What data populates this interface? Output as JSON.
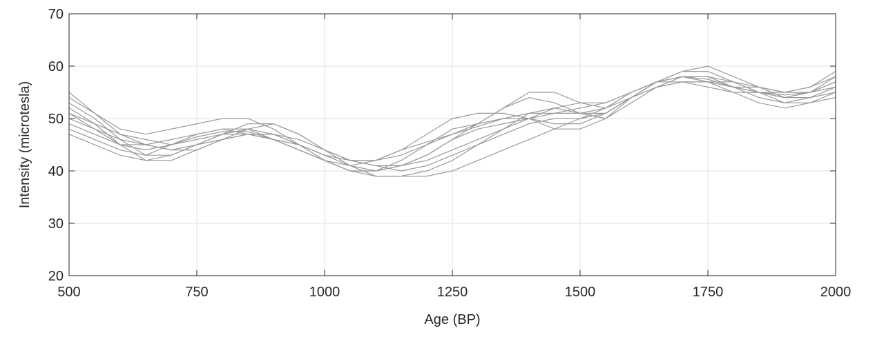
{
  "chart_data": {
    "type": "line",
    "xlabel": "Age (BP)",
    "ylabel": "Intensity (microtesla)",
    "x": [
      500,
      550,
      600,
      650,
      700,
      750,
      800,
      850,
      900,
      950,
      1000,
      1050,
      1100,
      1150,
      1200,
      1250,
      1300,
      1350,
      1400,
      1450,
      1500,
      1550,
      1600,
      1650,
      1700,
      1750,
      1800,
      1850,
      1900,
      1950,
      2000
    ],
    "xlim": [
      500,
      2000
    ],
    "xticks": [
      500,
      750,
      1000,
      1250,
      1500,
      1750,
      2000
    ],
    "ylim": [
      20,
      70
    ],
    "yticks": [
      20,
      30,
      40,
      50,
      60,
      70
    ],
    "grid": true,
    "series": [
      {
        "color": "#999999",
        "values": [
          51,
          48,
          45,
          44,
          45,
          46.5,
          47.5,
          47.5,
          46,
          44,
          42,
          41,
          42,
          44,
          45.5,
          47,
          48.5,
          50,
          51,
          51,
          51,
          52,
          55,
          57,
          58,
          57.5,
          56,
          55,
          54.5,
          55,
          57
        ]
      },
      {
        "color": "#999999",
        "values": [
          53,
          50,
          46,
          43,
          43,
          45,
          47,
          48,
          47,
          45,
          43,
          41,
          40,
          41,
          43,
          46,
          49,
          52,
          54,
          53,
          51,
          50,
          53,
          56,
          58,
          58,
          56,
          54,
          53,
          54,
          56
        ]
      },
      {
        "color": "#999999",
        "values": [
          49,
          47,
          45,
          45,
          46,
          47,
          48,
          48,
          46,
          44,
          42,
          40,
          40,
          42,
          45,
          48,
          49,
          50,
          50,
          49,
          49,
          51,
          54,
          57,
          57,
          56,
          55,
          55,
          55,
          56,
          58
        ]
      },
      {
        "color": "#999999",
        "values": [
          55,
          51,
          47,
          45,
          44,
          44,
          46,
          48,
          49,
          47,
          44,
          42,
          41,
          41,
          42,
          44,
          46,
          48,
          50,
          52,
          53,
          53,
          55,
          57,
          59,
          59,
          57,
          55,
          53,
          53,
          55
        ]
      },
      {
        "color": "#999999",
        "values": [
          50,
          48,
          46,
          45,
          44,
          45,
          47,
          49,
          49,
          47,
          44,
          41,
          39,
          39,
          40,
          42,
          45,
          48,
          51,
          52,
          51,
          51,
          54,
          57,
          59,
          60,
          58,
          56,
          54,
          54,
          55
        ]
      },
      {
        "color": "#999999",
        "values": [
          52,
          49,
          45,
          42,
          42,
          44,
          46,
          47,
          47,
          45,
          43,
          42,
          42,
          44,
          47,
          50,
          51,
          51,
          50,
          48,
          48,
          50,
          54,
          56,
          57,
          57,
          56,
          56,
          55,
          56,
          59
        ]
      },
      {
        "color": "#999999",
        "values": [
          48,
          46,
          44,
          43,
          45,
          47,
          48,
          47,
          46,
          44,
          42,
          40,
          39,
          39,
          39,
          40,
          42,
          44,
          46,
          48,
          50,
          52,
          55,
          57,
          58,
          57,
          56,
          55,
          54,
          55,
          57
        ]
      },
      {
        "color": "#999999",
        "values": [
          51,
          49,
          47,
          46,
          45,
          46,
          47,
          47,
          46,
          45,
          43,
          42,
          42,
          43,
          45,
          47,
          49,
          52,
          55,
          55,
          53,
          52,
          54,
          56,
          57,
          57,
          57,
          56,
          55,
          55,
          56
        ]
      },
      {
        "color": "#999999",
        "values": [
          54,
          51,
          48,
          47,
          48,
          49,
          50,
          50,
          48,
          45,
          42,
          40,
          40,
          41,
          43,
          46,
          48,
          49,
          50,
          51,
          52,
          53,
          55,
          57,
          58,
          58,
          57,
          55,
          54,
          55,
          58
        ]
      },
      {
        "color": "#999999",
        "values": [
          47,
          45,
          43,
          42,
          43,
          45,
          46,
          47,
          47,
          46,
          44,
          42,
          41,
          40,
          41,
          43,
          45,
          47,
          49,
          50,
          50,
          51,
          54,
          57,
          58,
          57,
          55,
          53,
          52,
          53,
          54
        ]
      }
    ]
  }
}
